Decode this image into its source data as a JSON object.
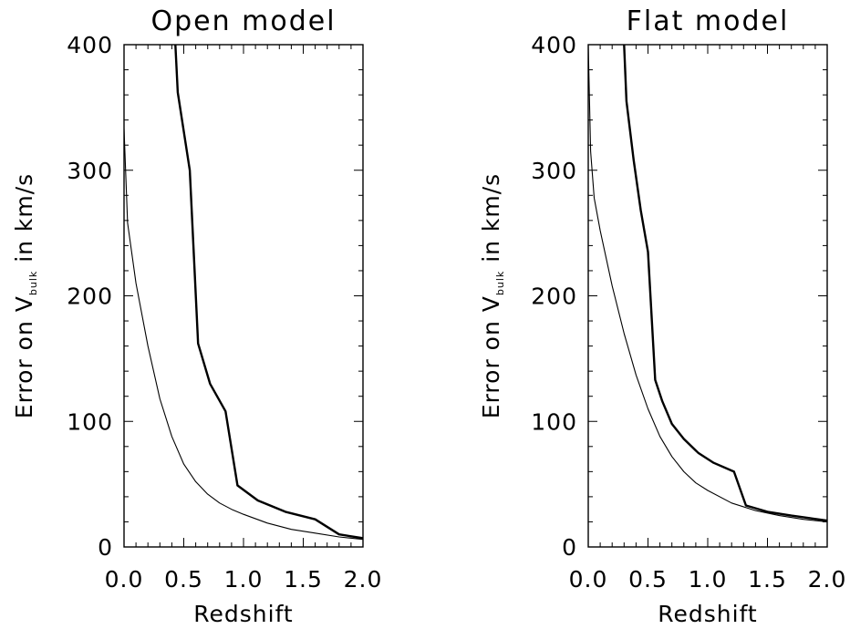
{
  "chart_data": [
    {
      "type": "line",
      "title": "Open model",
      "xlabel": "Redshift",
      "ylabel": {
        "prefix": "Error on V",
        "subscript": "bulk",
        "suffix": " in km/s"
      },
      "xlim": [
        0.0,
        2.0
      ],
      "ylim": [
        0,
        400
      ],
      "xticks": [
        "0.0",
        "0.5",
        "1.0",
        "1.5",
        "2.0"
      ],
      "yticks": [
        "0",
        "100",
        "200",
        "300",
        "400"
      ],
      "grid": false,
      "series": [
        {
          "style": "thin",
          "x": [
            0.0,
            0.03,
            0.1,
            0.2,
            0.3,
            0.4,
            0.5,
            0.6,
            0.7,
            0.8,
            0.9,
            1.0,
            1.2,
            1.4,
            1.6,
            1.8,
            2.0
          ],
          "y": [
            333,
            258,
            210,
            160,
            118,
            88,
            66,
            52,
            42,
            35,
            30,
            26,
            19,
            14,
            11,
            8,
            6
          ]
        },
        {
          "style": "thick",
          "x": [
            0.43,
            0.45,
            0.55,
            0.62,
            0.72,
            0.85,
            0.95,
            1.12,
            1.35,
            1.6,
            1.8,
            2.0
          ],
          "y": [
            400,
            362,
            300,
            162,
            130,
            108,
            49,
            37,
            28,
            22,
            10,
            7
          ]
        }
      ]
    },
    {
      "type": "line",
      "title": "Flat model",
      "xlabel": "Redshift",
      "ylabel": {
        "prefix": "Error on V",
        "subscript": "bulk",
        "suffix": " in km/s"
      },
      "xlim": [
        0.0,
        2.0
      ],
      "ylim": [
        0,
        400
      ],
      "xticks": [
        "0.0",
        "0.5",
        "1.0",
        "1.5",
        "2.0"
      ],
      "yticks": [
        "0",
        "100",
        "200",
        "300",
        "400"
      ],
      "grid": false,
      "series": [
        {
          "style": "thin",
          "x": [
            0.0,
            0.02,
            0.05,
            0.1,
            0.2,
            0.3,
            0.4,
            0.5,
            0.6,
            0.7,
            0.8,
            0.9,
            1.0,
            1.2,
            1.4,
            1.6,
            1.8,
            2.0
          ],
          "y": [
            400,
            315,
            278,
            252,
            208,
            170,
            137,
            110,
            88,
            72,
            60,
            51,
            45,
            35,
            29,
            25,
            22,
            20
          ]
        },
        {
          "style": "thick",
          "x": [
            0.3,
            0.32,
            0.38,
            0.44,
            0.5,
            0.56,
            0.62,
            0.7,
            0.8,
            0.92,
            1.05,
            1.22,
            1.32,
            1.5,
            1.7,
            1.85,
            2.0
          ],
          "y": [
            400,
            355,
            308,
            268,
            235,
            133,
            116,
            98,
            86,
            75,
            67,
            60,
            33,
            28,
            25,
            23,
            21
          ]
        }
      ]
    }
  ]
}
